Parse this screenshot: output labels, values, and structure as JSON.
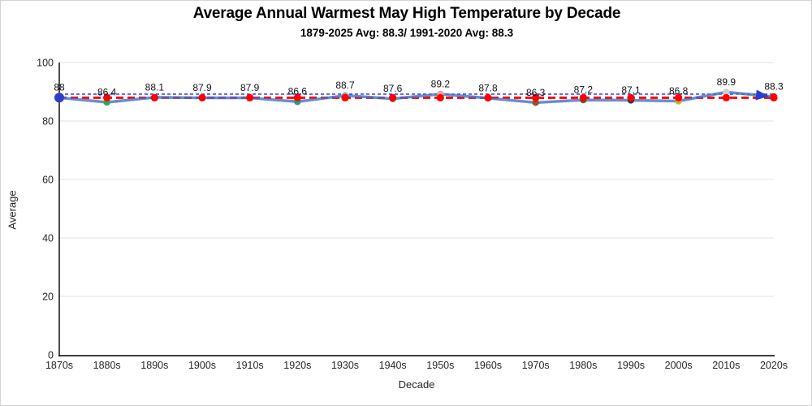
{
  "chart_data": {
    "type": "line",
    "title": "Average Annual Warmest May High Temperature by Decade",
    "subtitle": "1879-2025 Avg: 88.3/ 1991-2020 Avg: 88.3",
    "xlabel": "Decade",
    "ylabel": "Average",
    "ylim": [
      0,
      100
    ],
    "y_ticks": [
      0,
      20,
      40,
      60,
      80,
      100
    ],
    "grid": true,
    "legend": "none",
    "categories": [
      "1870s",
      "1880s",
      "1890s",
      "1900s",
      "1910s",
      "1920s",
      "1930s",
      "1940s",
      "1950s",
      "1960s",
      "1970s",
      "1980s",
      "1990s",
      "2000s",
      "2010s",
      "2020s"
    ],
    "series": [
      {
        "name": "decade-average",
        "kind": "line",
        "color": "rgba(68,114,196,0.8)",
        "values": [
          88,
          86.4,
          88.1,
          87.9,
          87.9,
          86.6,
          88.7,
          87.6,
          89.2,
          87.8,
          86.3,
          87.2,
          87.1,
          86.8,
          89.9,
          88.3
        ],
        "labels": [
          "88",
          "86.4",
          "88.1",
          "87.9",
          "87.9",
          "86.6",
          "88.7",
          "87.6",
          "89.2",
          "87.8",
          "86.3",
          "87.2",
          "87.1",
          "86.8",
          "89.9",
          "88.3"
        ],
        "marker_colors": [
          "#2b3fc9",
          "#2fa84f",
          "#ffc000",
          "#5b9bd5",
          "#264478",
          "#1e9e8e",
          "#9e9e9e",
          "#636363",
          "#e8a3a8",
          "#997300",
          "#8a5a2b",
          "#43682b",
          "#1f3864",
          "#b8b43b",
          "#cfcfcf",
          "#c00000"
        ],
        "start_cap": "oval",
        "end_cap": "arrow",
        "cap_color": "#2b3fc9"
      },
      {
        "name": "avg-1879-2025",
        "kind": "constant-line",
        "value": 88.3,
        "color": "#ff0000",
        "dashed": true,
        "point_markers": true
      },
      {
        "name": "avg-1991-2020",
        "kind": "constant-line",
        "value": 88.3,
        "color": "#1823e6",
        "dashed": true,
        "point_markers": false
      }
    ],
    "colors": {
      "gridline": "#e2e2e2",
      "axis": "#000000",
      "tick_label": "#262626",
      "data_label": "#111111"
    }
  }
}
